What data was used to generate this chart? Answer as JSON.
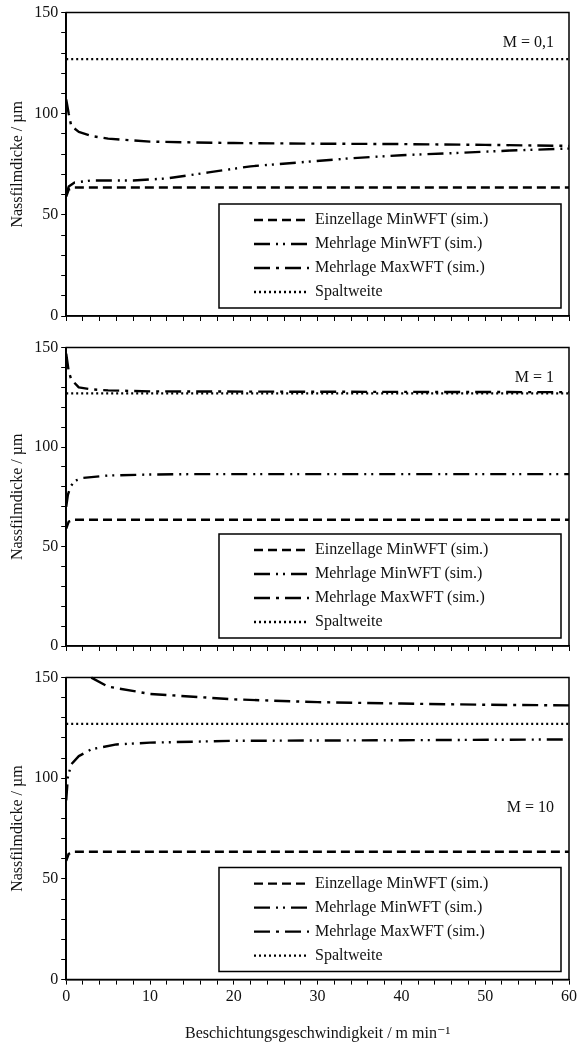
{
  "chart_data": [
    {
      "type": "line",
      "ylabel": "Nassfilmdicke / µm",
      "annotations": [
        "M = 0,1"
      ],
      "legend": "bottom right",
      "tick_labels": "y",
      "xlim": [
        0,
        60
      ],
      "ylim": [
        0,
        150
      ],
      "xticks": [
        0,
        {
          "value": 2,
          "label": null
        },
        {
          "value": 4,
          "label": null
        },
        {
          "value": 6,
          "label": null
        },
        {
          "value": 8,
          "label": null
        },
        10,
        {
          "value": 12,
          "label": null
        },
        {
          "value": 14,
          "label": null
        },
        {
          "value": 16,
          "label": null
        },
        {
          "value": 18,
          "label": null
        },
        20,
        {
          "value": 22,
          "label": null
        },
        {
          "value": 24,
          "label": null
        },
        {
          "value": 26,
          "label": null
        },
        {
          "value": 28,
          "label": null
        },
        30,
        {
          "value": 32,
          "label": null
        },
        {
          "value": 34,
          "label": null
        },
        {
          "value": 36,
          "label": null
        },
        {
          "value": 38,
          "label": null
        },
        40,
        {
          "value": 42,
          "label": null
        },
        {
          "value": 44,
          "label": null
        },
        {
          "value": 46,
          "label": null
        },
        {
          "value": 48,
          "label": null
        },
        50,
        {
          "value": 52,
          "label": null
        },
        {
          "value": 54,
          "label": null
        },
        {
          "value": 56,
          "label": null
        },
        {
          "value": 58,
          "label": null
        },
        60
      ],
      "yticks": [
        0,
        {
          "value": 10,
          "label": null
        },
        {
          "value": 20,
          "label": null
        },
        {
          "value": 30,
          "label": null
        },
        {
          "value": 40,
          "label": null
        },
        50,
        {
          "value": 60,
          "label": null
        },
        {
          "value": 70,
          "label": null
        },
        {
          "value": 80,
          "label": null
        },
        {
          "value": 90,
          "label": null
        },
        100,
        {
          "value": 110,
          "label": null
        },
        {
          "value": 120,
          "label": null
        },
        {
          "value": 130,
          "label": null
        },
        {
          "value": 140,
          "label": null
        },
        150
      ],
      "series": [
        {
          "name": "Einzellage MinWFT (sim.)",
          "color": "#000000",
          "line_style": "dashed",
          "x": [
            0,
            0.3,
            1,
            60
          ],
          "values": [
            59,
            62.5,
            63.5,
            63.5
          ]
        },
        {
          "name": "Mehrlage MinWFT (sim.)",
          "color": "#000000",
          "line_style": "dashdotdot",
          "x": [
            0,
            0.3,
            1,
            3,
            8,
            12,
            17,
            22,
            28,
            34,
            40,
            46,
            53,
            60
          ],
          "values": [
            60,
            64,
            66,
            67,
            67,
            68,
            71,
            74,
            76,
            78,
            79.5,
            80.5,
            81.8,
            82.8
          ]
        },
        {
          "name": "Mehrlage MaxWFT (sim.)",
          "color": "#000000",
          "line_style": "dashdot",
          "x": [
            0,
            0.3,
            0.6,
            1.5,
            3,
            5,
            10,
            20,
            30,
            40,
            50,
            60
          ],
          "values": [
            107,
            100,
            94,
            91,
            89,
            87.7,
            86.2,
            85.5,
            85.2,
            85,
            84.6,
            84.1
          ]
        },
        {
          "name": "Spaltweite",
          "color": "#000000",
          "line_style": "dotted",
          "x": [
            0,
            60
          ],
          "values": [
            127,
            127
          ]
        }
      ]
    },
    {
      "type": "line",
      "ylabel": "Nassfilmdicke / µm",
      "annotations": [
        "M = 1"
      ],
      "legend": "bottom right",
      "tick_labels": "y",
      "xlim": [
        0,
        60
      ],
      "ylim": [
        0,
        150
      ],
      "xticks": [
        0,
        {
          "value": 2,
          "label": null
        },
        {
          "value": 4,
          "label": null
        },
        {
          "value": 6,
          "label": null
        },
        {
          "value": 8,
          "label": null
        },
        10,
        {
          "value": 12,
          "label": null
        },
        {
          "value": 14,
          "label": null
        },
        {
          "value": 16,
          "label": null
        },
        {
          "value": 18,
          "label": null
        },
        20,
        {
          "value": 22,
          "label": null
        },
        {
          "value": 24,
          "label": null
        },
        {
          "value": 26,
          "label": null
        },
        {
          "value": 28,
          "label": null
        },
        30,
        {
          "value": 32,
          "label": null
        },
        {
          "value": 34,
          "label": null
        },
        {
          "value": 36,
          "label": null
        },
        {
          "value": 38,
          "label": null
        },
        40,
        {
          "value": 42,
          "label": null
        },
        {
          "value": 44,
          "label": null
        },
        {
          "value": 46,
          "label": null
        },
        {
          "value": 48,
          "label": null
        },
        50,
        {
          "value": 52,
          "label": null
        },
        {
          "value": 54,
          "label": null
        },
        {
          "value": 56,
          "label": null
        },
        {
          "value": 58,
          "label": null
        },
        60
      ],
      "yticks": [
        0,
        {
          "value": 10,
          "label": null
        },
        {
          "value": 20,
          "label": null
        },
        {
          "value": 30,
          "label": null
        },
        {
          "value": 40,
          "label": null
        },
        50,
        {
          "value": 60,
          "label": null
        },
        {
          "value": 70,
          "label": null
        },
        {
          "value": 80,
          "label": null
        },
        {
          "value": 90,
          "label": null
        },
        100,
        {
          "value": 110,
          "label": null
        },
        {
          "value": 120,
          "label": null
        },
        {
          "value": 130,
          "label": null
        },
        {
          "value": 140,
          "label": null
        },
        150
      ],
      "series": [
        {
          "name": "Einzellage MinWFT (sim.)",
          "color": "#000000",
          "line_style": "dashed",
          "x": [
            0,
            0.3,
            1,
            60
          ],
          "values": [
            59,
            62.5,
            63.5,
            63.5
          ]
        },
        {
          "name": "Mehrlage MinWFT (sim.)",
          "color": "#000000",
          "line_style": "dashdotdot",
          "x": [
            0,
            0.2,
            0.5,
            1,
            2,
            5,
            10,
            15,
            30,
            60
          ],
          "values": [
            70,
            76,
            80,
            83,
            84.5,
            85.7,
            86.2,
            86.4,
            86.4,
            86.4
          ]
        },
        {
          "name": "Mehrlage MaxWFT (sim.)",
          "color": "#000000",
          "line_style": "dashdot",
          "x": [
            0,
            0.3,
            0.6,
            1.5,
            3,
            5,
            10,
            30,
            60
          ],
          "values": [
            147,
            138,
            134,
            130,
            129,
            128.5,
            128,
            127.8,
            127.6
          ]
        },
        {
          "name": "Spaltweite",
          "color": "#000000",
          "line_style": "dotted",
          "x": [
            0,
            60
          ],
          "values": [
            127,
            127
          ]
        }
      ]
    },
    {
      "type": "line",
      "ylabel": "Nassfilmdicke / µm",
      "xlabel": "Beschichtungsgeschwindigkeit / m min⁻¹",
      "annotations": [
        "M = 10"
      ],
      "legend": "bottom right",
      "xlim": [
        0,
        60
      ],
      "ylim": [
        0,
        150
      ],
      "xticks": [
        0,
        {
          "value": 2,
          "label": null
        },
        {
          "value": 4,
          "label": null
        },
        {
          "value": 6,
          "label": null
        },
        {
          "value": 8,
          "label": null
        },
        10,
        {
          "value": 12,
          "label": null
        },
        {
          "value": 14,
          "label": null
        },
        {
          "value": 16,
          "label": null
        },
        {
          "value": 18,
          "label": null
        },
        20,
        {
          "value": 22,
          "label": null
        },
        {
          "value": 24,
          "label": null
        },
        {
          "value": 26,
          "label": null
        },
        {
          "value": 28,
          "label": null
        },
        30,
        {
          "value": 32,
          "label": null
        },
        {
          "value": 34,
          "label": null
        },
        {
          "value": 36,
          "label": null
        },
        {
          "value": 38,
          "label": null
        },
        40,
        {
          "value": 42,
          "label": null
        },
        {
          "value": 44,
          "label": null
        },
        {
          "value": 46,
          "label": null
        },
        {
          "value": 48,
          "label": null
        },
        50,
        {
          "value": 52,
          "label": null
        },
        {
          "value": 54,
          "label": null
        },
        {
          "value": 56,
          "label": null
        },
        {
          "value": 58,
          "label": null
        },
        60
      ],
      "yticks": [
        0,
        {
          "value": 10,
          "label": null
        },
        {
          "value": 20,
          "label": null
        },
        {
          "value": 30,
          "label": null
        },
        {
          "value": 40,
          "label": null
        },
        50,
        {
          "value": 60,
          "label": null
        },
        {
          "value": 70,
          "label": null
        },
        {
          "value": 80,
          "label": null
        },
        {
          "value": 90,
          "label": null
        },
        100,
        {
          "value": 110,
          "label": null
        },
        {
          "value": 120,
          "label": null
        },
        {
          "value": 130,
          "label": null
        },
        {
          "value": 140,
          "label": null
        },
        150
      ],
      "series": [
        {
          "name": "Einzellage MinWFT (sim.)",
          "color": "#000000",
          "line_style": "dashed",
          "x": [
            0,
            0.3,
            1,
            60
          ],
          "values": [
            59,
            62.5,
            63.5,
            63.5
          ]
        },
        {
          "name": "Mehrlage MinWFT (sim.)",
          "color": "#000000",
          "line_style": "dashdotdot",
          "x": [
            0,
            0.2,
            0.6,
            1.5,
            3,
            6,
            10,
            20,
            40,
            60
          ],
          "values": [
            89,
            100.6,
            106.9,
            111,
            114.4,
            116.8,
            117.7,
            118.6,
            118.9,
            119.3
          ]
        },
        {
          "name": "Mehrlage MaxWFT (sim.)",
          "color": "#000000",
          "line_style": "dashdot",
          "x": [
            3,
            5,
            10,
            20,
            30,
            40,
            50,
            60
          ],
          "values": [
            150,
            145.5,
            141.9,
            139.2,
            137.8,
            137.1,
            136.5,
            136.2
          ]
        },
        {
          "name": "Spaltweite",
          "color": "#000000",
          "line_style": "dotted",
          "x": [
            0,
            60
          ],
          "values": [
            127,
            127
          ]
        }
      ]
    }
  ]
}
